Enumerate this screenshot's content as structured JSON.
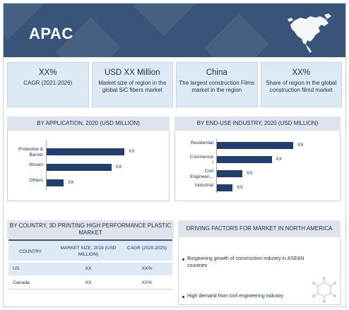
{
  "header": {
    "title": "APAC",
    "map_icon": "north-america-map-icon"
  },
  "kpis": [
    {
      "value": "XX%",
      "caption": "CAGR (2021-2026)"
    },
    {
      "value": "USD XX Million",
      "caption": "Market size of region in the global SiC fibers market"
    },
    {
      "value": "China",
      "caption": "The largest construction Films market in the region"
    },
    {
      "value": "XX%",
      "caption": "Share of region in the global construction filmd market"
    }
  ],
  "application_chart": {
    "title": "BY APPLICATION, 2020 (USD MILLION)",
    "chart_data": {
      "type": "bar",
      "orientation": "horizontal",
      "categories": [
        "Protective & Barrier",
        "Woven",
        "Others"
      ],
      "values": [
        78,
        65,
        17
      ],
      "data_labels": [
        "XX",
        "XX",
        "XX"
      ]
    }
  },
  "end_use_chart": {
    "title": "BY END-USE INDUSTRY, 2020 (USD MILLION)",
    "chart_data": {
      "type": "bar",
      "orientation": "horizontal",
      "categories": [
        "Residential",
        "Commercial",
        "Civil Engineering",
        "Industrial"
      ],
      "display_categories": [
        "Residential",
        "Commercia\nl",
        "Civil\nEngineeri...",
        "Industrial"
      ],
      "values": [
        78,
        56,
        26,
        16
      ],
      "data_labels": [
        "XX",
        "XX",
        "XX",
        "XX"
      ]
    }
  },
  "country_table": {
    "title": "BY COUNTRY, 3D PRINTING HIGH PERFORMANCE PLASTIC MARKET",
    "columns": [
      "COUNTRY",
      "MARKET SIZE, 2019 (USD MILLION)",
      "CAGR (2020-2025)"
    ],
    "rows": [
      {
        "country": "US",
        "market_size": "XX",
        "cagr": "XX%"
      },
      {
        "country": "Canada",
        "market_size": "XX",
        "cagr": "XX%"
      }
    ]
  },
  "drivers": {
    "title": "DRIVING FACTORS FOR MARKET IN NORTH AMERICA",
    "items": [
      "Burgeoning growth of construction industry in ASEAN countries",
      "High demand from civil engineering industry"
    ],
    "watermark_icon": "molecule-icon"
  },
  "colors": {
    "header": "#3a5378",
    "bar": "#243e6b",
    "kpi_bg": "#dde9f5",
    "panel_head": "#dfe4ec"
  }
}
